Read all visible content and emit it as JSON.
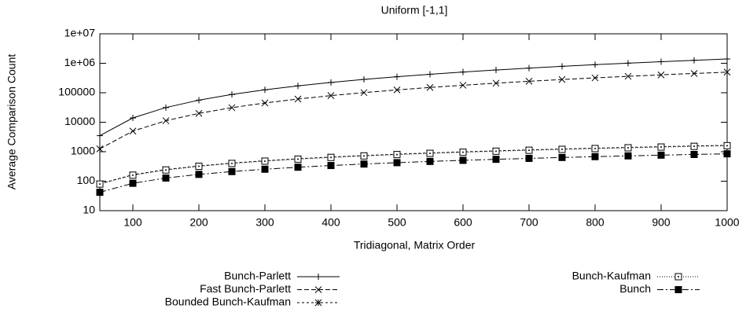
{
  "chart_data": {
    "type": "line",
    "title": "Uniform [-1,1]",
    "xlabel": "Tridiagonal, Matrix Order",
    "ylabel": "Average Comparison Count",
    "log_y": true,
    "x": [
      50,
      100,
      150,
      200,
      250,
      300,
      350,
      400,
      450,
      500,
      550,
      600,
      650,
      700,
      750,
      800,
      850,
      900,
      950,
      1000
    ],
    "series": [
      {
        "name": "Bunch-Parlett",
        "color": "#000000",
        "values": [
          3500,
          14000,
          31500,
          56000,
          87500,
          126000,
          171500,
          224000,
          283500,
          350000,
          423500,
          504000,
          591500,
          686000,
          787500,
          896000,
          1011500,
          1134000,
          1263500,
          1400000
        ]
      },
      {
        "name": "Fast Bunch-Parlett",
        "color": "#000000",
        "values": [
          1250,
          5000,
          11250,
          20000,
          31250,
          45000,
          61250,
          80000,
          101250,
          125000,
          151250,
          180000,
          211250,
          245000,
          281250,
          320000,
          361250,
          405000,
          451250,
          500000
        ]
      },
      {
        "name": "Bounded Bunch-Kaufman",
        "color": "#000000",
        "values": [
          82,
          165,
          248,
          330,
          412,
          495,
          578,
          660,
          742,
          825,
          908,
          990,
          1072,
          1155,
          1238,
          1320,
          1402,
          1485,
          1568,
          1650
        ]
      },
      {
        "name": "Bunch-Kaufman",
        "color": "#000000",
        "values": [
          80,
          160,
          240,
          320,
          400,
          480,
          560,
          640,
          720,
          800,
          880,
          960,
          1040,
          1120,
          1200,
          1280,
          1360,
          1440,
          1520,
          1600
        ]
      },
      {
        "name": "Bunch",
        "color": "#000000",
        "values": [
          42,
          85,
          128,
          170,
          212,
          255,
          298,
          340,
          382,
          425,
          468,
          510,
          552,
          595,
          638,
          680,
          722,
          765,
          808,
          850
        ]
      }
    ],
    "xlim": [
      50,
      1000
    ],
    "xticks": [
      100,
      200,
      300,
      400,
      500,
      600,
      700,
      800,
      900,
      1000
    ],
    "ylim": [
      10,
      10000000
    ],
    "yticks": [
      10,
      100,
      1000,
      10000,
      100000,
      {
        "value": 1000000,
        "label": "1e+06"
      },
      {
        "value": 10000000,
        "label": "1e+07"
      }
    ]
  }
}
